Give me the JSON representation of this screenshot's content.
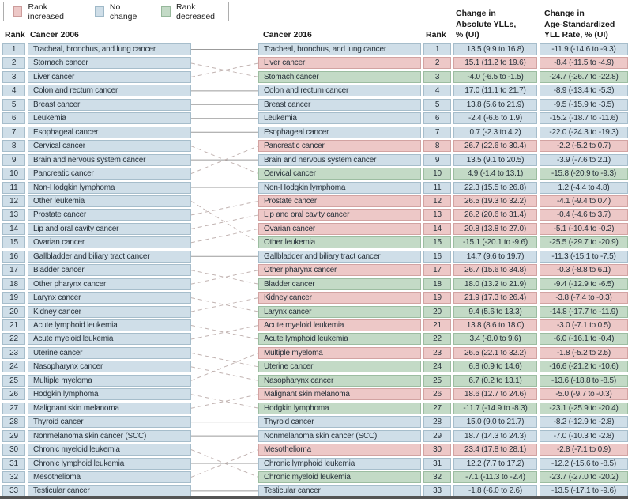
{
  "colors": {
    "rank_increased": "#edc8c7",
    "no_change": "#cfdee8",
    "rank_decreased": "#c3dac6"
  },
  "legend": {
    "items": [
      {
        "label": "Rank increased",
        "status": "increased"
      },
      {
        "label": "No change",
        "status": "no_change"
      },
      {
        "label": "Rank decreased",
        "status": "decreased"
      }
    ]
  },
  "headers": {
    "rank_left": "Rank",
    "cancer_2006": "Cancer 2006",
    "cancer_2016": "Cancer 2016",
    "rank_right": "Rank",
    "abs_ylls": "Change in\nAbsolute YLLs,\n% (UI)",
    "age_std": "Change in\nAge-Standardized\nYLL Rate, % (UI)"
  },
  "chart_data": {
    "type": "table",
    "description": "Rank change in cancers by years of life lost (YLLs), 2006 vs 2016, with dashed connectors for rank changes and solid connectors for no change",
    "columns": [
      "Rank",
      "Cancer 2006",
      "Cancer 2016",
      "Rank",
      "Change in Absolute YLLs, % (UI)",
      "Change in Age-Standardized YLL Rate, % (UI)"
    ],
    "rows": [
      {
        "rank": 1,
        "cancer_2006": "Tracheal, bronchus, and lung cancer",
        "moves_to": 1,
        "cancer_2016": "Tracheal, bronchus, and lung cancer",
        "status": "no_change",
        "change_abs_ylls": "13.5 (9.9 to 16.8)",
        "change_age_std": "-11.9 (-14.6 to -9.3)"
      },
      {
        "rank": 2,
        "cancer_2006": "Stomach cancer",
        "moves_to": 3,
        "cancer_2016": "Liver cancer",
        "status": "increased",
        "change_abs_ylls": "15.1 (11.2 to 19.6)",
        "change_age_std": "-8.4 (-11.5 to -4.9)"
      },
      {
        "rank": 3,
        "cancer_2006": "Liver cancer",
        "moves_to": 2,
        "cancer_2016": "Stomach cancer",
        "status": "decreased",
        "change_abs_ylls": "-4.0 (-6.5 to -1.5)",
        "change_age_std": "-24.7 (-26.7 to -22.8)"
      },
      {
        "rank": 4,
        "cancer_2006": "Colon and rectum cancer",
        "moves_to": 4,
        "cancer_2016": "Colon and rectum cancer",
        "status": "no_change",
        "change_abs_ylls": "17.0 (11.1 to 21.7)",
        "change_age_std": "-8.9 (-13.4 to -5.3)"
      },
      {
        "rank": 5,
        "cancer_2006": "Breast cancer",
        "moves_to": 5,
        "cancer_2016": "Breast cancer",
        "status": "no_change",
        "change_abs_ylls": "13.8 (5.6 to 21.9)",
        "change_age_std": "-9.5 (-15.9 to -3.5)"
      },
      {
        "rank": 6,
        "cancer_2006": "Leukemia",
        "moves_to": 6,
        "cancer_2016": "Leukemia",
        "status": "no_change",
        "change_abs_ylls": "-2.4 (-6.6 to 1.9)",
        "change_age_std": "-15.2 (-18.7 to -11.6)"
      },
      {
        "rank": 7,
        "cancer_2006": "Esophageal cancer",
        "moves_to": 7,
        "cancer_2016": "Esophageal cancer",
        "status": "no_change",
        "change_abs_ylls": "0.7 (-2.3 to 4.2)",
        "change_age_std": "-22.0 (-24.3 to -19.3)"
      },
      {
        "rank": 8,
        "cancer_2006": "Cervical cancer",
        "moves_to": 10,
        "cancer_2016": "Pancreatic cancer",
        "status": "increased",
        "change_abs_ylls": "26.7 (22.6 to 30.4)",
        "change_age_std": "-2.2 (-5.2 to 0.7)"
      },
      {
        "rank": 9,
        "cancer_2006": "Brain and nervous system cancer",
        "moves_to": 9,
        "cancer_2016": "Brain and nervous system cancer",
        "status": "no_change",
        "change_abs_ylls": "13.5 (9.1 to 20.5)",
        "change_age_std": "-3.9 (-7.6 to 2.1)"
      },
      {
        "rank": 10,
        "cancer_2006": "Pancreatic cancer",
        "moves_to": 8,
        "cancer_2016": "Cervical cancer",
        "status": "decreased",
        "change_abs_ylls": "4.9 (-1.4 to 13.1)",
        "change_age_std": "-15.8 (-20.9 to -9.3)"
      },
      {
        "rank": 11,
        "cancer_2006": "Non-Hodgkin lymphoma",
        "moves_to": 11,
        "cancer_2016": "Non-Hodgkin lymphoma",
        "status": "no_change",
        "change_abs_ylls": "22.3 (15.5 to 26.8)",
        "change_age_std": "1.2 (-4.4 to 4.8)"
      },
      {
        "rank": 12,
        "cancer_2006": "Other leukemia",
        "moves_to": 15,
        "cancer_2016": "Prostate cancer",
        "status": "increased",
        "change_abs_ylls": "26.5 (19.3 to 32.2)",
        "change_age_std": "-4.1 (-9.4 to 0.4)"
      },
      {
        "rank": 13,
        "cancer_2006": "Prostate cancer",
        "moves_to": 12,
        "cancer_2016": "Lip and oral cavity cancer",
        "status": "increased",
        "change_abs_ylls": "26.2 (20.6 to 31.4)",
        "change_age_std": "-0.4 (-4.6 to 3.7)"
      },
      {
        "rank": 14,
        "cancer_2006": "Lip and oral cavity cancer",
        "moves_to": 13,
        "cancer_2016": "Ovarian cancer",
        "status": "increased",
        "change_abs_ylls": "20.8 (13.8 to 27.0)",
        "change_age_std": "-5.1 (-10.4 to -0.2)"
      },
      {
        "rank": 15,
        "cancer_2006": "Ovarian cancer",
        "moves_to": 14,
        "cancer_2016": "Other leukemia",
        "status": "decreased",
        "change_abs_ylls": "-15.1 (-20.1 to -9.6)",
        "change_age_std": "-25.5 (-29.7 to -20.9)"
      },
      {
        "rank": 16,
        "cancer_2006": "Gallbladder and biliary tract cancer",
        "moves_to": 16,
        "cancer_2016": "Gallbladder and biliary tract cancer",
        "status": "no_change",
        "change_abs_ylls": "14.7 (9.6 to 19.7)",
        "change_age_std": "-11.3 (-15.1 to -7.5)"
      },
      {
        "rank": 17,
        "cancer_2006": "Bladder cancer",
        "moves_to": 18,
        "cancer_2016": "Other pharynx cancer",
        "status": "increased",
        "change_abs_ylls": "26.7 (15.6 to 34.8)",
        "change_age_std": "-0.3 (-8.8 to 6.1)"
      },
      {
        "rank": 18,
        "cancer_2006": "Other pharynx cancer",
        "moves_to": 17,
        "cancer_2016": "Bladder cancer",
        "status": "decreased",
        "change_abs_ylls": "18.0 (13.2 to 21.9)",
        "change_age_std": "-9.4 (-12.9 to -6.5)"
      },
      {
        "rank": 19,
        "cancer_2006": "Larynx cancer",
        "moves_to": 20,
        "cancer_2016": "Kidney cancer",
        "status": "increased",
        "change_abs_ylls": "21.9 (17.3 to 26.4)",
        "change_age_std": "-3.8 (-7.4 to -0.3)"
      },
      {
        "rank": 20,
        "cancer_2006": "Kidney cancer",
        "moves_to": 19,
        "cancer_2016": "Larynx cancer",
        "status": "decreased",
        "change_abs_ylls": "9.4 (5.6 to 13.3)",
        "change_age_std": "-14.8 (-17.7 to -11.9)"
      },
      {
        "rank": 21,
        "cancer_2006": "Acute lymphoid leukemia",
        "moves_to": 22,
        "cancer_2016": "Acute myeloid leukemia",
        "status": "increased",
        "change_abs_ylls": "13.8 (8.6 to 18.0)",
        "change_age_std": "-3.0 (-7.1 to 0.5)"
      },
      {
        "rank": 22,
        "cancer_2006": "Acute myeloid leukemia",
        "moves_to": 21,
        "cancer_2016": "Acute lymphoid leukemia",
        "status": "decreased",
        "change_abs_ylls": "3.4 (-8.0 to 9.6)",
        "change_age_std": "-6.0 (-16.1 to -0.4)"
      },
      {
        "rank": 23,
        "cancer_2006": "Uterine cancer",
        "moves_to": 24,
        "cancer_2016": "Multiple myeloma",
        "status": "increased",
        "change_abs_ylls": "26.5 (22.1 to 32.2)",
        "change_age_std": "-1.8 (-5.2 to 2.5)"
      },
      {
        "rank": 24,
        "cancer_2006": "Nasopharynx cancer",
        "moves_to": 25,
        "cancer_2016": "Uterine cancer",
        "status": "decreased",
        "change_abs_ylls": "6.8 (0.9 to 14.6)",
        "change_age_std": "-16.6 (-21.2 to -10.6)"
      },
      {
        "rank": 25,
        "cancer_2006": "Multiple myeloma",
        "moves_to": 23,
        "cancer_2016": "Nasopharynx cancer",
        "status": "decreased",
        "change_abs_ylls": "6.7 (0.2 to 13.1)",
        "change_age_std": "-13.6 (-18.8 to -8.5)"
      },
      {
        "rank": 26,
        "cancer_2006": "Hodgkin lymphoma",
        "moves_to": 27,
        "cancer_2016": "Malignant skin melanoma",
        "status": "increased",
        "change_abs_ylls": "18.6 (12.7 to 24.6)",
        "change_age_std": "-5.0 (-9.7 to -0.3)"
      },
      {
        "rank": 27,
        "cancer_2006": "Malignant skin melanoma",
        "moves_to": 26,
        "cancer_2016": "Hodgkin lymphoma",
        "status": "decreased",
        "change_abs_ylls": "-11.7 (-14.9 to -8.3)",
        "change_age_std": "-23.1 (-25.9 to -20.4)"
      },
      {
        "rank": 28,
        "cancer_2006": "Thyroid cancer",
        "moves_to": 28,
        "cancer_2016": "Thyroid cancer",
        "status": "no_change",
        "change_abs_ylls": "15.0 (9.0 to 21.7)",
        "change_age_std": "-8.2 (-12.9 to -2.8)"
      },
      {
        "rank": 29,
        "cancer_2006": "Nonmelanoma skin cancer (SCC)",
        "moves_to": 29,
        "cancer_2016": "Nonmelanoma skin cancer (SCC)",
        "status": "no_change",
        "change_abs_ylls": "18.7 (14.3 to 24.3)",
        "change_age_std": "-7.0 (-10.3 to -2.8)"
      },
      {
        "rank": 30,
        "cancer_2006": "Chronic myeloid leukemia",
        "moves_to": 32,
        "cancer_2016": "Mesothelioma",
        "status": "increased",
        "change_abs_ylls": "23.4 (17.8 to 28.1)",
        "change_age_std": "-2.8 (-7.1 to 0.9)"
      },
      {
        "rank": 31,
        "cancer_2006": "Chronic lymphoid leukemia",
        "moves_to": 31,
        "cancer_2016": "Chronic lymphoid leukemia",
        "status": "no_change",
        "change_abs_ylls": "12.2 (7.7 to 17.2)",
        "change_age_std": "-12.2 (-15.6 to -8.5)"
      },
      {
        "rank": 32,
        "cancer_2006": "Mesothelioma",
        "moves_to": 30,
        "cancer_2016": "Chronic myeloid leukemia",
        "status": "decreased",
        "change_abs_ylls": "-7.1 (-11.3 to -2.4)",
        "change_age_std": "-23.7 (-27.0 to -20.2)"
      },
      {
        "rank": 33,
        "cancer_2006": "Testicular cancer",
        "moves_to": 33,
        "cancer_2016": "Testicular cancer",
        "status": "no_change",
        "change_abs_ylls": "-1.8 (-6.0 to 2.6)",
        "change_age_std": "-13.5 (-17.1 to -9.6)"
      }
    ]
  }
}
